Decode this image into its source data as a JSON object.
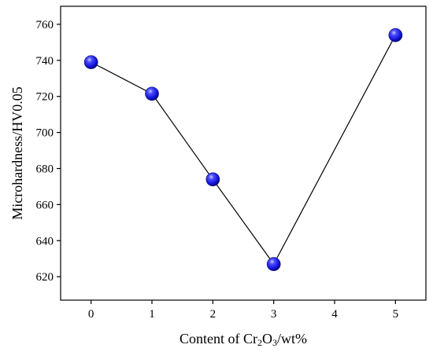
{
  "chart_data": {
    "type": "line",
    "x": [
      0,
      1,
      2,
      3,
      5
    ],
    "values": [
      739,
      721.5,
      674,
      627,
      754
    ],
    "xlabel_parts": {
      "prefix": "Content of Cr",
      "sub1": "2",
      "mid": "O",
      "sub2": "3",
      "suffix": "/wt%"
    },
    "ylabel": "Microhardness/HV0.05",
    "xlim": [
      -0.5,
      5.5
    ],
    "ylim": [
      607,
      770
    ],
    "xticks": [
      0,
      1,
      2,
      3,
      4,
      5
    ],
    "yticks": [
      620,
      640,
      660,
      680,
      700,
      720,
      740,
      760
    ],
    "grid": false,
    "line_color": "#000000",
    "marker_color": "#1a1aee"
  }
}
